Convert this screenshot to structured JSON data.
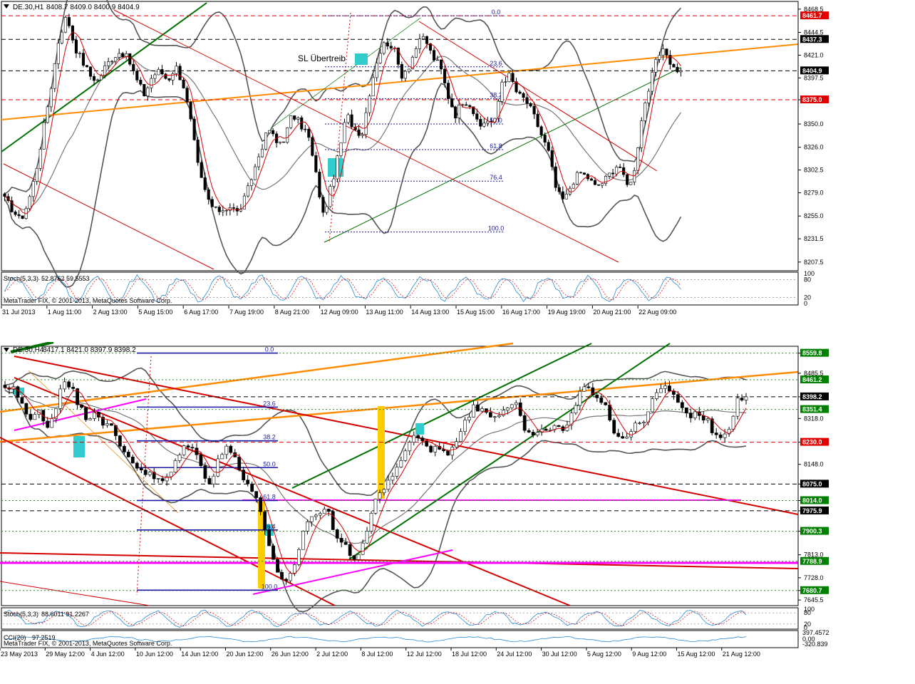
{
  "chart_data": [
    {
      "type": "candlestick",
      "title": "DE.30,H1",
      "ohlc_header": "8408.7 8409.0 8400.9 8404.9",
      "annotation": "SL Übertreib",
      "ylim": [
        8200,
        8475
      ],
      "y_ticks": [
        "8468.5",
        "8444.5",
        "8421.0",
        "8397.5",
        "8375.0",
        "8350.0",
        "8326.0",
        "8302.5",
        "8279.0",
        "8255.0",
        "8231.5",
        "8207.5"
      ],
      "x_ticks": [
        "31 Jul 2013",
        "1 Aug 11:00",
        "2 Aug 13:00",
        "5 Aug 15:00",
        "6 Aug 17:00",
        "7 Aug 19:00",
        "8 Aug 21:00",
        "12 Aug 09:00",
        "13 Aug 11:00",
        "14 Aug 13:00",
        "15 Aug 15:00",
        "16 Aug 17:00",
        "19 Aug 19:00",
        "20 Aug 21:00",
        "22 Aug 09:00"
      ],
      "price_tags": [
        {
          "label": "8461.7",
          "value": 8461.7,
          "color": "#e00000"
        },
        {
          "label": "8437.3",
          "value": 8437.3,
          "color": "#000000"
        },
        {
          "label": "8404.9",
          "value": 8404.9,
          "color": "#000000"
        },
        {
          "label": "8375.0",
          "value": 8375.0,
          "color": "#e00000"
        }
      ],
      "fib_levels": [
        {
          "label": "0.0",
          "value": 8461.7
        },
        {
          "label": "23.6",
          "value": 8409.0
        },
        {
          "label": "38.2",
          "value": 8376.0
        },
        {
          "label": "50.0",
          "value": 8350.0
        },
        {
          "label": "61.8",
          "value": 8323.5
        },
        {
          "label": "76.4",
          "value": 8291.0
        },
        {
          "label": "100.0",
          "value": 8238.5
        }
      ],
      "close_path": [
        8272,
        8262,
        8250,
        8268,
        8300,
        8345,
        8390,
        8440,
        8462,
        8430,
        8415,
        8400,
        8395,
        8410,
        8420,
        8425,
        8415,
        8395,
        8380,
        8400,
        8405,
        8395,
        8410,
        8390,
        8350,
        8300,
        8275,
        8260,
        8262,
        8265,
        8258,
        8275,
        8300,
        8325,
        8345,
        8330,
        8335,
        8360,
        8350,
        8340,
        8300,
        8255,
        8285,
        8320,
        8360,
        8345,
        8340,
        8385,
        8420,
        8435,
        8430,
        8400,
        8410,
        8430,
        8440,
        8420,
        8410,
        8380,
        8360,
        8375,
        8370,
        8345,
        8355,
        8350,
        8395,
        8400,
        8380,
        8375,
        8360,
        8340,
        8320,
        8280,
        8270,
        8290,
        8300,
        8295,
        8285,
        8290,
        8300,
        8310,
        8285,
        8300,
        8360,
        8390,
        8420,
        8425,
        8408,
        8404.9
      ],
      "indicators": [
        {
          "name": "Stoch(5,3,3)",
          "values": "52.8762 59.5553",
          "scale": [
            "100",
            "80",
            "20",
            "0"
          ]
        }
      ],
      "watermark": "MetaTrader FIX, © 2001-2013, MetaQuotes Software Corp."
    },
    {
      "type": "candlestick",
      "title": "DE.30,H4",
      "ohlc_header": "8417.1 8421.0 8397.9 8398.2",
      "ylim": [
        7630,
        8580
      ],
      "y_ticks": [
        "8559.8",
        "8485.5",
        "8398.2",
        "8318.0",
        "8230.0",
        "8148.0",
        "8075.0",
        "8014.0",
        "7975.9",
        "7900.3",
        "7813.0",
        "7728.0",
        "7680.7",
        "7645.5"
      ],
      "x_ticks": [
        "23 May 2013",
        "29 May 12:00",
        "4 Jun 12:00",
        "10 Jun 12:00",
        "14 Jun 12:00",
        "20 Jun 12:00",
        "26 Jun 12:00",
        "2 Jul 12:00",
        "8 Jul 12:00",
        "12 Jul 12:00",
        "18 Jul 12:00",
        "24 Jul 12:00",
        "30 Jul 12:00",
        "5 Aug 12:00",
        "9 Aug 12:00",
        "15 Aug 12:00",
        "21 Aug 12:00"
      ],
      "price_tags": [
        {
          "label": "8559.8",
          "value": 8559.8,
          "color": "#008000"
        },
        {
          "label": "8461.2",
          "value": 8461.2,
          "color": "#008000"
        },
        {
          "label": "8398.2",
          "value": 8398.2,
          "color": "#000000"
        },
        {
          "label": "8351.4",
          "value": 8351.4,
          "color": "#008000"
        },
        {
          "label": "8230.0",
          "value": 8230.0,
          "color": "#e00000"
        },
        {
          "label": "8075.0",
          "value": 8075.0,
          "color": "#000000"
        },
        {
          "label": "8014.0",
          "value": 8014.0,
          "color": "#008000"
        },
        {
          "label": "7975.9",
          "value": 7975.9,
          "color": "#000000"
        },
        {
          "label": "7900.3",
          "value": 7900.3,
          "color": "#008000"
        },
        {
          "label": "7788.9",
          "value": 7788.9,
          "color": "#008000"
        },
        {
          "label": "7680.7",
          "value": 7680.7,
          "color": "#008000"
        }
      ],
      "fib_levels": [
        {
          "label": "0.0",
          "value": 8560.0
        },
        {
          "label": "23.6",
          "value": 8360.0
        },
        {
          "label": "38.2",
          "value": 8235.0
        },
        {
          "label": "50.0",
          "value": 8136.0
        },
        {
          "label": "61.8",
          "value": 8014.0
        },
        {
          "label": "76.4",
          "value": 7905.0
        },
        {
          "label": "100.0",
          "value": 7682.0
        }
      ],
      "close_path": [
        8420,
        8440,
        8380,
        8300,
        8350,
        8290,
        8330,
        8470,
        8440,
        8360,
        8320,
        8350,
        8300,
        8280,
        8210,
        8180,
        8140,
        8120,
        8100,
        8080,
        8110,
        8170,
        8230,
        8200,
        8120,
        8080,
        8180,
        8210,
        8170,
        8100,
        8050,
        7980,
        7860,
        7740,
        7700,
        7750,
        7880,
        7960,
        7960,
        7990,
        7900,
        7860,
        7800,
        7820,
        7900,
        8030,
        8060,
        8090,
        8160,
        8230,
        8260,
        8220,
        8200,
        8220,
        8170,
        8260,
        8320,
        8360,
        8350,
        8330,
        8340,
        8370,
        8380,
        8280,
        8250,
        8260,
        8290,
        8280,
        8270,
        8340,
        8420,
        8430,
        8400,
        8370,
        8260,
        8250,
        8270,
        8300,
        8330,
        8410,
        8430,
        8420,
        8350,
        8330,
        8340,
        8320,
        8270,
        8250,
        8290,
        8400,
        8398.2
      ],
      "indicators": [
        {
          "name": "Stoch(5,3,3)",
          "values": "88.6011 91.2267",
          "scale": [
            "100",
            "80",
            "20",
            "0"
          ]
        },
        {
          "name": "CCI(20)",
          "values": "97.2519",
          "scale": [
            "397.4572",
            "0.00",
            "-320.839"
          ]
        }
      ],
      "watermark": "MetaTrader FIX, © 2001-2013, MetaQuotes Software Corp."
    }
  ]
}
